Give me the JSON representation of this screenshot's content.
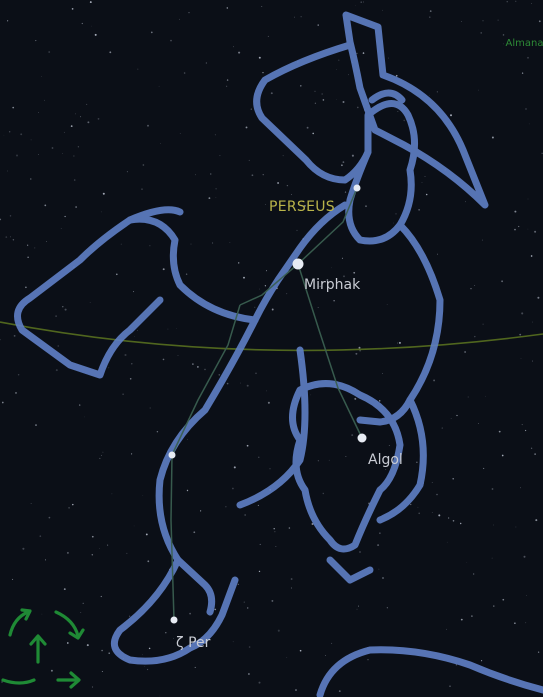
{
  "app": {
    "label": "Almanac"
  },
  "constellation": {
    "name": "PERSEUS"
  },
  "stars": {
    "mirphak": "Mirphak",
    "algol": "Algol",
    "zeta": "ζ Per"
  },
  "colors": {
    "sky": "#0b0f17",
    "figure_outline": "#5f7fc6",
    "constellation_line": "#3a5f50",
    "ecliptic": "#58701f",
    "constellation_label": "#b9b44a",
    "star_label": "#c9ccd4",
    "app_label": "#2d8a36",
    "nav_control": "#1f8a35"
  },
  "icons": {
    "navigation": "rotate-pan-navigation-icon"
  }
}
